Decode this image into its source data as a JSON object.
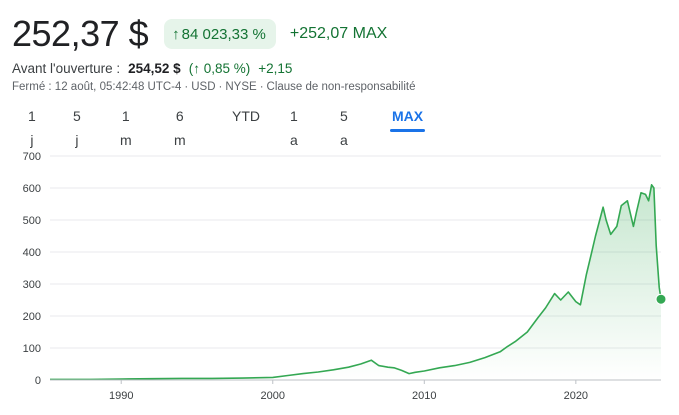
{
  "quote": {
    "price": "252,37 $",
    "change_pct": "84 023,33 %",
    "change_abs": "+252,07 MAX",
    "premarket_label": "Avant l'ouverture :",
    "premarket_price": "254,52 $",
    "premarket_pct": "(↑ 0,85 %)",
    "premarket_diff": "+2,15",
    "status": "Fermé : 12 août, 05:42:48 UTC-4",
    "currency": "USD",
    "exchange": "NYSE",
    "disclaimer": "Clause de non-responsabilité"
  },
  "tabs": [
    {
      "label": "1 j",
      "active": false
    },
    {
      "label": "5 j",
      "active": false
    },
    {
      "label": "1 m",
      "active": false
    },
    {
      "label": "6 m",
      "active": false
    },
    {
      "label": "YTD",
      "active": false
    },
    {
      "label": "1 a",
      "active": false
    },
    {
      "label": "5 a",
      "active": false
    },
    {
      "label": "MAX",
      "active": true
    }
  ],
  "colors": {
    "positive": "#137333",
    "line": "#34a853",
    "accent": "#1a73e8"
  },
  "chart_data": {
    "type": "area",
    "title": "",
    "xlabel": "",
    "ylabel": "",
    "xlim": [
      1985.3,
      2025.62
    ],
    "ylim": [
      0,
      700
    ],
    "yticks": [
      0,
      100,
      200,
      300,
      400,
      500,
      600,
      700
    ],
    "ytick_labels": [
      "0",
      "100",
      "200",
      "300",
      "400",
      "500",
      "600",
      "700"
    ],
    "xticks": [
      1990,
      2000,
      2010,
      2020
    ],
    "xtick_labels": [
      "1990",
      "2000",
      "2010",
      "2020"
    ],
    "grid": true,
    "series": [
      {
        "x": [
          1985.3,
          1988,
          1990,
          1992,
          1994,
          1996,
          1998,
          2000,
          2001,
          2002,
          2003,
          2004,
          2005,
          2005.8,
          2006.5,
          2007,
          2007.6,
          2008,
          2008.5,
          2009,
          2009.4,
          2010,
          2011,
          2012,
          2013,
          2014,
          2015,
          2015.5,
          2016,
          2016.8,
          2017.5,
          2018,
          2018.6,
          2019,
          2019.5,
          2020.0,
          2020.3,
          2020.7,
          2021,
          2021.3,
          2021.8,
          2022,
          2022.3,
          2022.7,
          2023,
          2023.4,
          2023.8,
          2024,
          2024.3,
          2024.6,
          2024.8,
          2025.0,
          2025.15,
          2025.3,
          2025.5,
          2025.62
        ],
        "y": [
          2,
          2,
          3,
          4,
          5,
          5,
          6,
          8,
          14,
          20,
          25,
          32,
          40,
          50,
          62,
          45,
          40,
          38,
          30,
          20,
          24,
          28,
          38,
          45,
          55,
          70,
          88,
          105,
          120,
          150,
          195,
          225,
          270,
          250,
          275,
          245,
          235,
          330,
          390,
          450,
          540,
          500,
          455,
          480,
          545,
          560,
          480,
          525,
          585,
          580,
          560,
          610,
          600,
          420,
          290,
          252.37
        ]
      }
    ]
  }
}
